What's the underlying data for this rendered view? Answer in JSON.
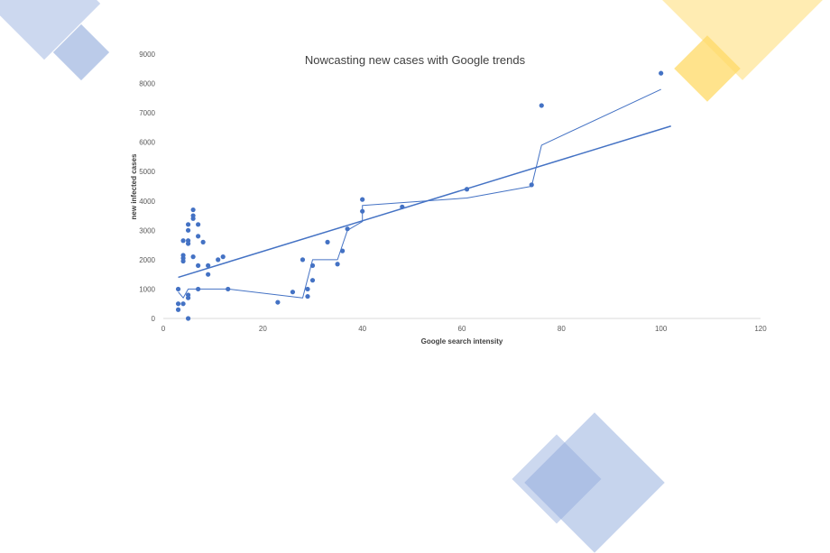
{
  "decorations": {
    "blue": "#8ea9db",
    "yellow": "#ffd966"
  },
  "chart_data": {
    "type": "scatter",
    "title": "Nowcasting new cases with Google trends",
    "xlabel": "Google search intensity",
    "ylabel": "new infected cases",
    "xlim": [
      0,
      120
    ],
    "ylim": [
      0,
      9000
    ],
    "xticks": [
      0,
      20,
      40,
      60,
      80,
      100,
      120
    ],
    "yticks": [
      0,
      1000,
      2000,
      3000,
      4000,
      5000,
      6000,
      7000,
      8000,
      9000
    ],
    "grid": false,
    "legend": "none",
    "color": "#4472c4",
    "series": [
      {
        "points": [
          [
            3,
            1000
          ],
          [
            3,
            500
          ],
          [
            3,
            300
          ],
          [
            4,
            500
          ],
          [
            4,
            1950
          ],
          [
            4,
            2050
          ],
          [
            4,
            2150
          ],
          [
            4,
            2650
          ],
          [
            5,
            0
          ],
          [
            5,
            700
          ],
          [
            5,
            800
          ],
          [
            5,
            2550
          ],
          [
            5,
            2650
          ],
          [
            5,
            3000
          ],
          [
            5,
            3200
          ],
          [
            6,
            2100
          ],
          [
            6,
            3400
          ],
          [
            6,
            3500
          ],
          [
            6,
            3700
          ],
          [
            7,
            1800
          ],
          [
            7,
            1000
          ],
          [
            7,
            2800
          ],
          [
            7,
            3200
          ],
          [
            8,
            2600
          ],
          [
            9,
            1800
          ],
          [
            9,
            1500
          ],
          [
            11,
            2000
          ],
          [
            12,
            2100
          ],
          [
            13,
            1000
          ],
          [
            23,
            550
          ],
          [
            26,
            900
          ],
          [
            28,
            2000
          ],
          [
            29,
            750
          ],
          [
            29,
            1000
          ],
          [
            30,
            1300
          ],
          [
            30,
            1800
          ],
          [
            33,
            2600
          ],
          [
            35,
            1850
          ],
          [
            36,
            2300
          ],
          [
            37,
            3050
          ],
          [
            40,
            4050
          ],
          [
            40,
            3650
          ],
          [
            48,
            3800
          ],
          [
            61,
            4400
          ],
          [
            74,
            4550
          ],
          [
            76,
            7250
          ],
          [
            100,
            8350
          ]
        ]
      }
    ],
    "smoothed_line": [
      [
        3,
        900
      ],
      [
        4,
        700
      ],
      [
        5,
        1000
      ],
      [
        13,
        1000
      ],
      [
        28,
        700
      ],
      [
        30,
        2000
      ],
      [
        35,
        2000
      ],
      [
        37,
        3000
      ],
      [
        40,
        3300
      ],
      [
        40,
        3850
      ],
      [
        61,
        4100
      ],
      [
        74,
        4500
      ],
      [
        76,
        5900
      ],
      [
        100,
        7800
      ]
    ],
    "trendline": [
      [
        3,
        1400
      ],
      [
        102,
        6550
      ]
    ]
  }
}
